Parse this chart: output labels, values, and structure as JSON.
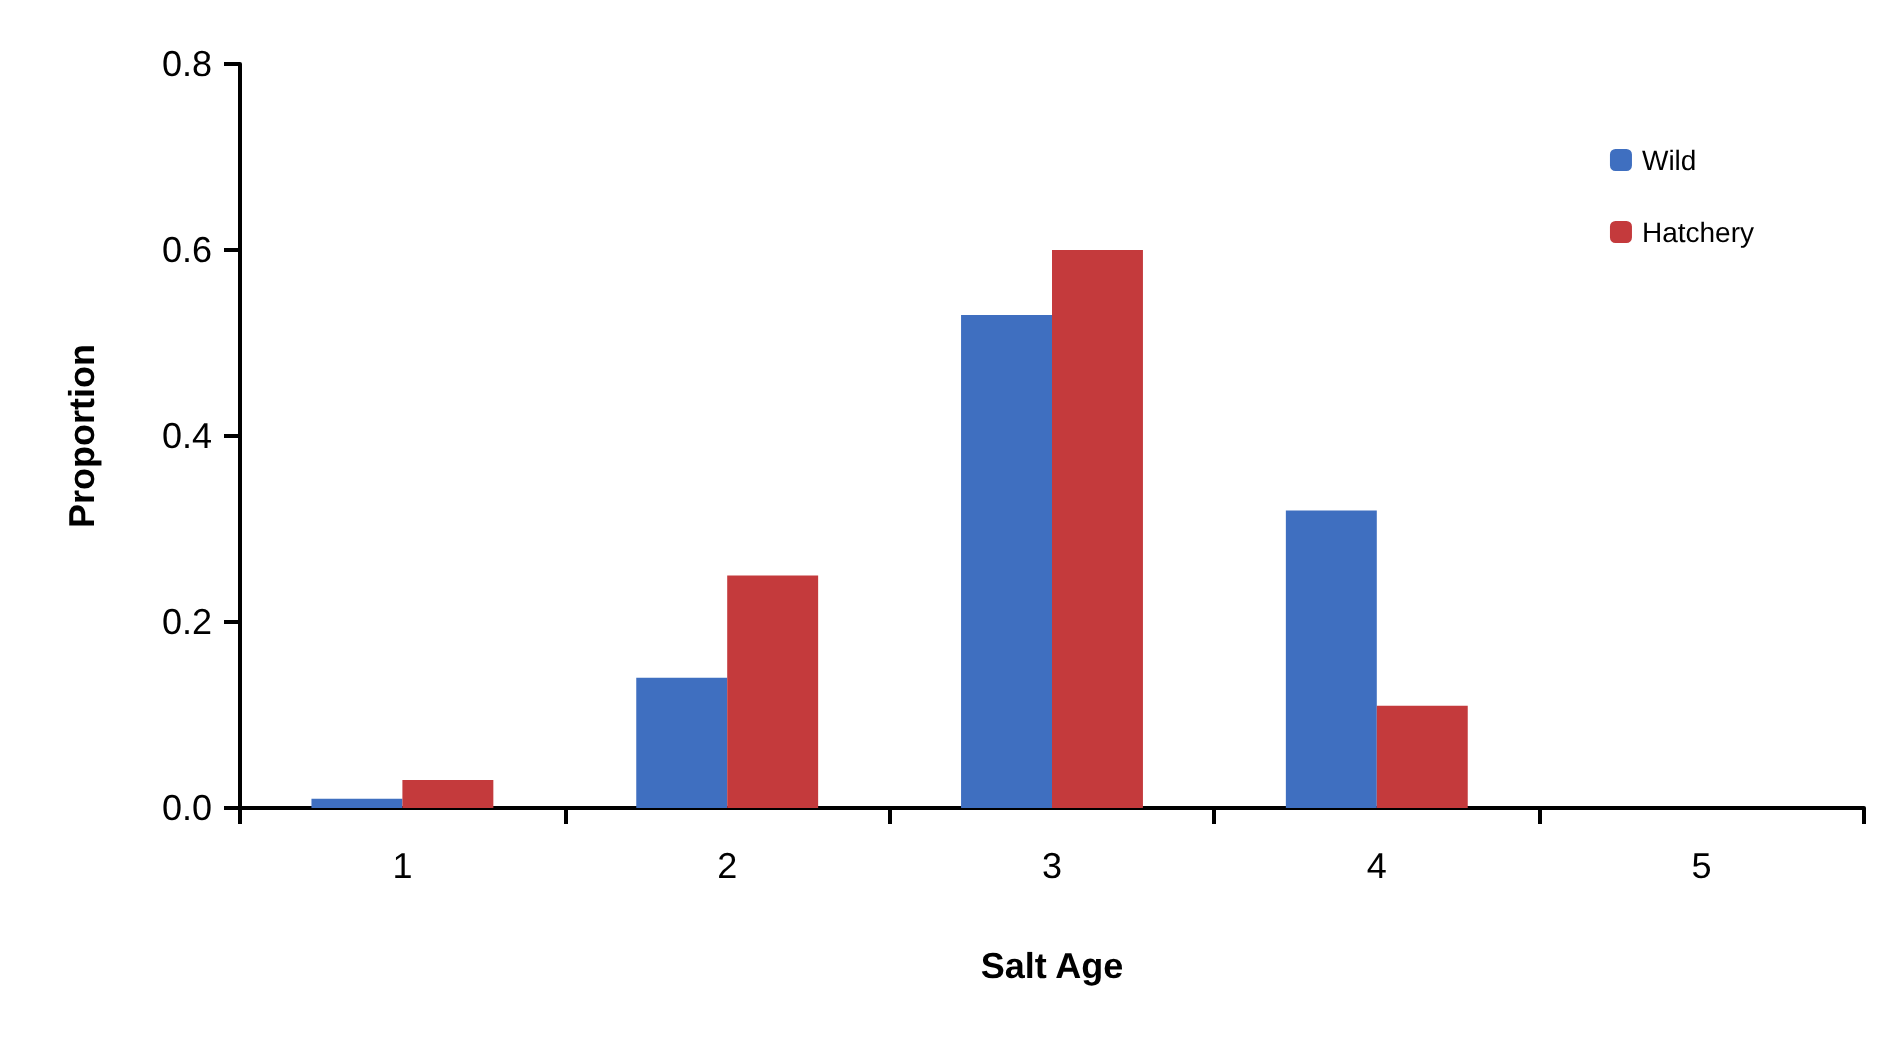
{
  "chart_data": {
    "type": "bar",
    "xlabel": "Salt Age",
    "ylabel": "Proportion",
    "categories": [
      "1",
      "2",
      "3",
      "4",
      "5"
    ],
    "series": [
      {
        "name": "Wild",
        "color": "#3f6fc0",
        "values": [
          0.01,
          0.14,
          0.53,
          0.32,
          0
        ]
      },
      {
        "name": "Hatchery",
        "color": "#c43a3c",
        "values": [
          0.03,
          0.25,
          0.6,
          0.11,
          0
        ]
      }
    ],
    "ylim": [
      0,
      0.8
    ],
    "yticks": [
      {
        "value": 0,
        "label": "0.0"
      },
      {
        "value": 0.2,
        "label": "0.2"
      },
      {
        "value": 0.4,
        "label": "0.4"
      },
      {
        "value": 0.6,
        "label": "0.6"
      },
      {
        "value": 0.8,
        "label": "0.8"
      }
    ],
    "grid": false,
    "legend": "top right"
  }
}
